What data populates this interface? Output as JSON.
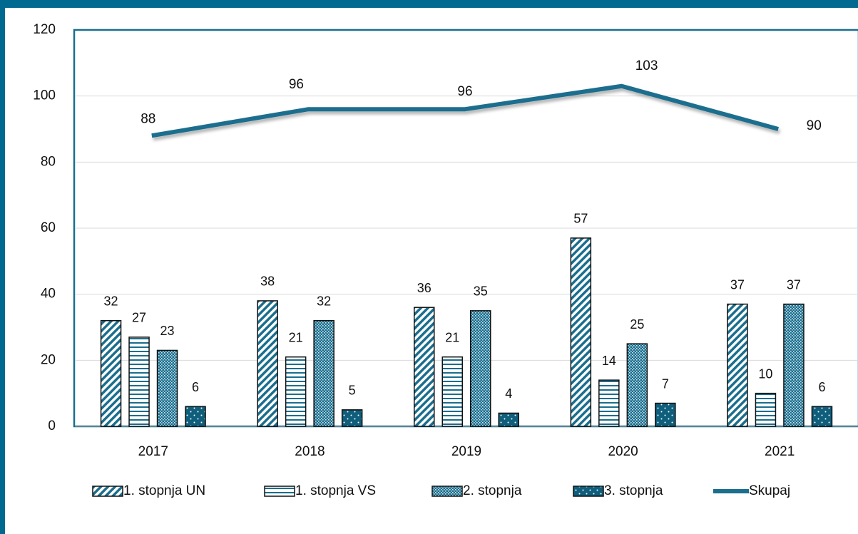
{
  "chart_data": {
    "type": "bar",
    "categories": [
      "2017",
      "2018",
      "2019",
      "2020",
      "2021"
    ],
    "series": [
      {
        "name": "1. stopnja UN",
        "color": "#1a6e8e",
        "values": [
          32,
          38,
          36,
          57,
          37
        ]
      },
      {
        "name": "1. stopnja VS",
        "color": "#1a6e8e",
        "values": [
          27,
          21,
          21,
          14,
          10
        ]
      },
      {
        "name": "2. stopnja",
        "color": "#1a6e8e",
        "values": [
          23,
          32,
          35,
          25,
          37
        ]
      },
      {
        "name": "3. stopnja",
        "color": "#1a6e8e",
        "values": [
          6,
          5,
          4,
          7,
          6
        ]
      },
      {
        "name": "Skupaj",
        "type": "line",
        "color": "#1a6e8e",
        "values": [
          88,
          96,
          96,
          103,
          90
        ]
      }
    ],
    "ylim": [
      0,
      120
    ],
    "yticks": [
      0,
      20,
      40,
      60,
      80,
      100,
      120
    ],
    "grid": true,
    "legend": "bottom"
  }
}
